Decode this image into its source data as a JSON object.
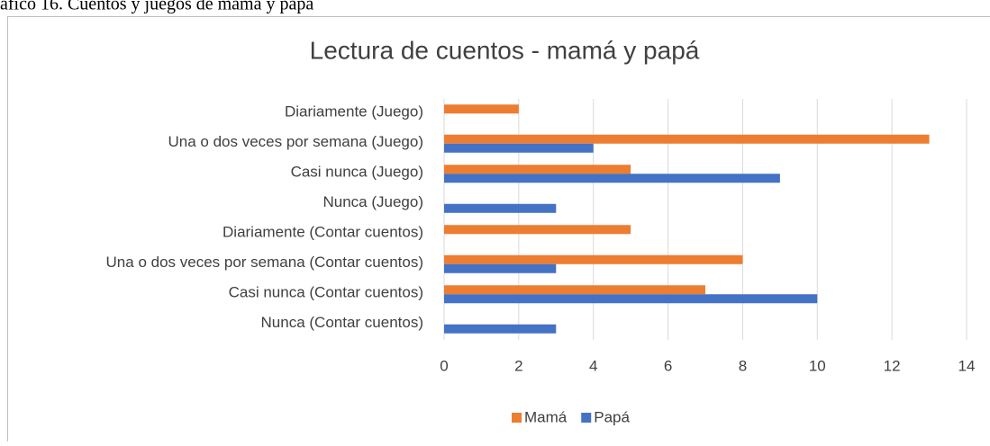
{
  "caption": "áfico 16. Cuentos y juegos de mamá y papá",
  "chart_data": {
    "type": "bar",
    "orientation": "horizontal",
    "title": "Lectura de cuentos - mamá y papá",
    "categories": [
      "Diariamente (Juego)",
      "Una o dos veces por semana (Juego)",
      "Casi  nunca (Juego)",
      "Nunca (Juego)",
      "Diariamente (Contar cuentos)",
      "Una o dos veces por semana (Contar cuentos)",
      "Casi  nunca (Contar cuentos)",
      "Nunca (Contar cuentos)"
    ],
    "series": [
      {
        "name": "Mamá",
        "color": "#ed7d31",
        "values": [
          2,
          13,
          5,
          0,
          5,
          8,
          7,
          0
        ]
      },
      {
        "name": "Papá",
        "color": "#4472c4",
        "values": [
          0,
          4,
          9,
          3,
          0,
          3,
          10,
          3
        ]
      }
    ],
    "xlim": [
      0,
      14
    ],
    "xticks": [
      0,
      2,
      4,
      6,
      8,
      10,
      12,
      14
    ],
    "grid": true,
    "legend": "bottom"
  }
}
